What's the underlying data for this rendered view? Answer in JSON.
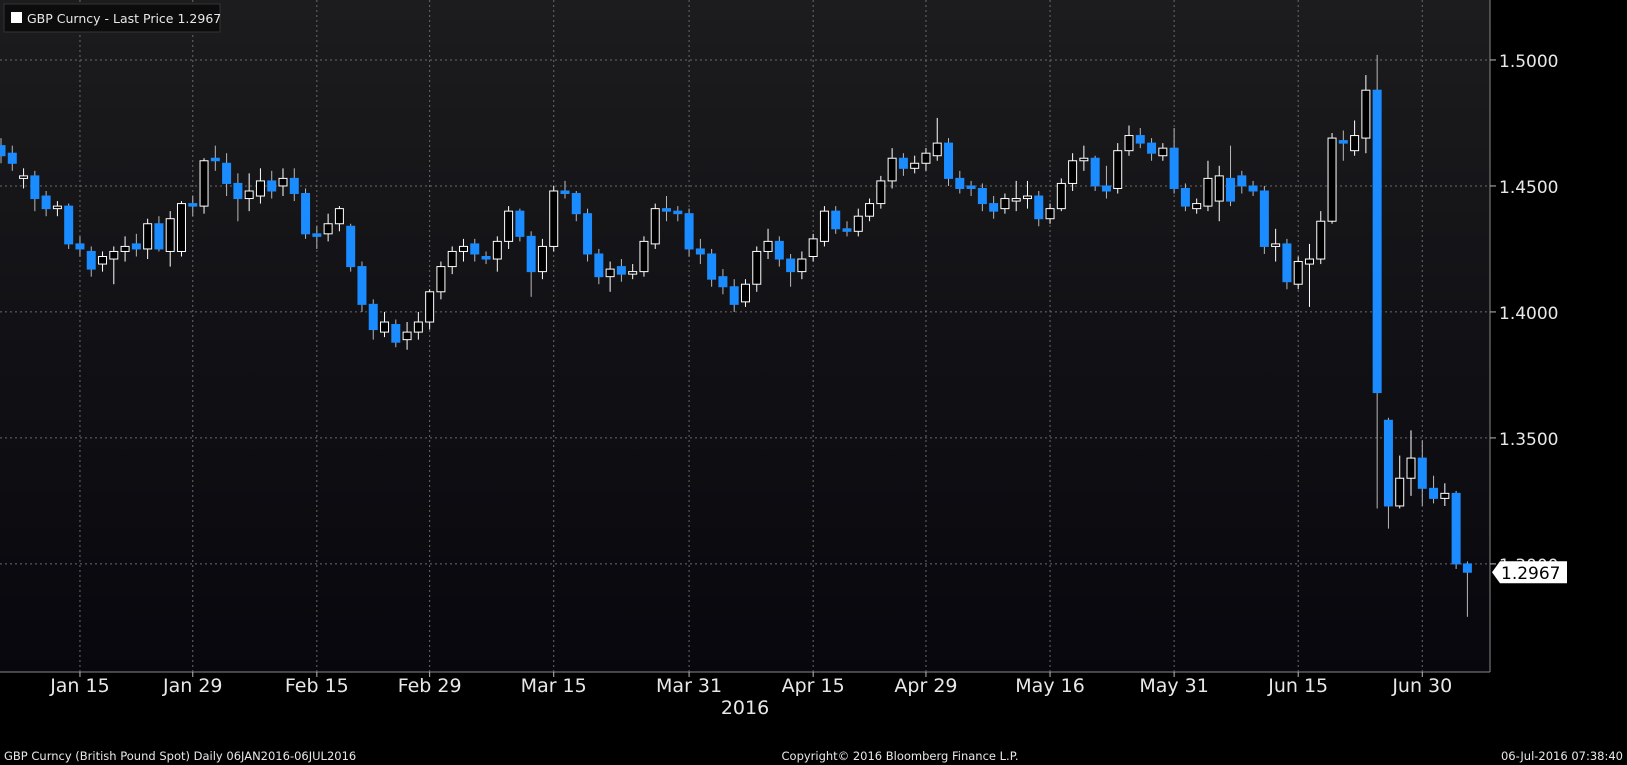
{
  "chart_data": {
    "type": "candlestick",
    "series_name": "GBP Curncy - Last Price",
    "x_label": "2016",
    "footer_left": "GBP Curncy (British Pound Spot)  Daily 06JAN2016-06JUL2016",
    "copyright": "Copyright© 2016 Bloomberg Finance L.P.",
    "timestamp": "06-Jul-2016 07:38:40",
    "up_color": "#ffffff",
    "down_color": "#1a8cff",
    "grid": true,
    "ylim": [
      1.2571,
      1.5238
    ],
    "yticks": [
      {
        "value": 1.3,
        "label": "1.3000"
      },
      {
        "value": 1.35,
        "label": "1.3500"
      },
      {
        "value": 1.4,
        "label": "1.4000"
      },
      {
        "value": 1.45,
        "label": "1.4500"
      },
      {
        "value": 1.5,
        "label": "1.5000"
      }
    ],
    "categories": [
      null,
      null,
      null,
      null,
      null,
      null,
      null,
      "Jan 15",
      null,
      null,
      null,
      null,
      null,
      null,
      null,
      null,
      null,
      "Jan 29",
      null,
      null,
      null,
      null,
      null,
      null,
      null,
      null,
      null,
      null,
      "Feb 15",
      null,
      null,
      null,
      null,
      null,
      null,
      null,
      null,
      null,
      "Feb 29",
      null,
      null,
      null,
      null,
      null,
      null,
      null,
      null,
      null,
      null,
      "Mar 15",
      null,
      null,
      null,
      null,
      null,
      null,
      null,
      null,
      null,
      null,
      null,
      "Mar 31",
      null,
      null,
      null,
      null,
      null,
      null,
      null,
      null,
      null,
      null,
      "Apr 15",
      null,
      null,
      null,
      null,
      null,
      null,
      null,
      null,
      null,
      "Apr 29",
      null,
      null,
      null,
      null,
      null,
      null,
      null,
      null,
      null,
      null,
      "May 16",
      null,
      null,
      null,
      null,
      null,
      null,
      null,
      null,
      null,
      null,
      "May 31",
      null,
      null,
      null,
      null,
      null,
      null,
      null,
      null,
      null,
      null,
      "Jun 15",
      null,
      null,
      null,
      null,
      null,
      null,
      null,
      null,
      null,
      null,
      "Jun 30",
      null,
      null,
      null,
      null
    ],
    "open": [
      1.466,
      1.463,
      1.453,
      1.454,
      1.446,
      1.441,
      1.442,
      1.427,
      1.424,
      1.419,
      1.421,
      1.424,
      1.427,
      1.425,
      1.435,
      1.424,
      1.424,
      1.443,
      1.442,
      1.461,
      1.459,
      1.451,
      1.445,
      1.446,
      1.452,
      1.45,
      1.453,
      1.447,
      1.431,
      1.431,
      1.435,
      1.434,
      1.418,
      1.403,
      1.392,
      1.395,
      1.389,
      1.392,
      1.396,
      1.408,
      1.418,
      1.424,
      1.427,
      1.422,
      1.421,
      1.428,
      1.44,
      1.43,
      1.416,
      1.426,
      1.448,
      1.447,
      1.439,
      1.423,
      1.414,
      1.418,
      1.415,
      1.416,
      1.427,
      1.441,
      1.44,
      1.439,
      1.425,
      1.423,
      1.414,
      1.41,
      1.404,
      1.411,
      1.424,
      1.428,
      1.421,
      1.416,
      1.422,
      1.428,
      1.44,
      1.433,
      1.432,
      1.438,
      1.443,
      1.452,
      1.461,
      1.457,
      1.459,
      1.462,
      1.467,
      1.453,
      1.45,
      1.449,
      1.443,
      1.441,
      1.444,
      1.445,
      1.446,
      1.437,
      1.441,
      1.451,
      1.46,
      1.461,
      1.45,
      1.449,
      1.464,
      1.47,
      1.467,
      1.462,
      1.465,
      1.449,
      1.441,
      1.442,
      1.444,
      1.453,
      1.454,
      1.45,
      1.448,
      1.426,
      1.427,
      1.411,
      1.419,
      1.421,
      1.436,
      1.468,
      1.464,
      1.469,
      1.488,
      1.357,
      1.323,
      1.334,
      1.342,
      1.33,
      1.326,
      1.328,
      1.3
    ],
    "high": [
      1.469,
      1.466,
      1.457,
      1.456,
      1.448,
      1.444,
      1.443,
      1.43,
      1.426,
      1.424,
      1.426,
      1.43,
      1.431,
      1.437,
      1.438,
      1.44,
      1.444,
      1.446,
      1.461,
      1.466,
      1.463,
      1.455,
      1.455,
      1.457,
      1.456,
      1.457,
      1.457,
      1.449,
      1.434,
      1.439,
      1.442,
      1.435,
      1.42,
      1.405,
      1.4,
      1.397,
      1.396,
      1.4,
      1.409,
      1.42,
      1.426,
      1.429,
      1.429,
      1.424,
      1.43,
      1.442,
      1.441,
      1.432,
      1.429,
      1.45,
      1.452,
      1.448,
      1.441,
      1.425,
      1.42,
      1.421,
      1.419,
      1.43,
      1.443,
      1.446,
      1.442,
      1.441,
      1.429,
      1.425,
      1.417,
      1.413,
      1.413,
      1.426,
      1.433,
      1.43,
      1.423,
      1.424,
      1.431,
      1.442,
      1.442,
      1.436,
      1.441,
      1.445,
      1.454,
      1.465,
      1.463,
      1.462,
      1.465,
      1.477,
      1.469,
      1.456,
      1.452,
      1.451,
      1.446,
      1.447,
      1.452,
      1.452,
      1.448,
      1.443,
      1.453,
      1.463,
      1.466,
      1.462,
      1.458,
      1.467,
      1.474,
      1.473,
      1.469,
      1.467,
      1.473,
      1.451,
      1.445,
      1.46,
      1.458,
      1.466,
      1.456,
      1.452,
      1.45,
      1.433,
      1.429,
      1.422,
      1.427,
      1.44,
      1.471,
      1.472,
      1.476,
      1.494,
      1.502,
      1.358,
      1.343,
      1.353,
      1.349,
      1.335,
      1.332,
      1.329,
      1.301
    ],
    "low": [
      1.459,
      1.456,
      1.449,
      1.44,
      1.438,
      1.438,
      1.425,
      1.422,
      1.414,
      1.416,
      1.411,
      1.42,
      1.422,
      1.421,
      1.424,
      1.418,
      1.422,
      1.438,
      1.439,
      1.456,
      1.446,
      1.436,
      1.44,
      1.443,
      1.445,
      1.446,
      1.444,
      1.429,
      1.425,
      1.428,
      1.432,
      1.416,
      1.4,
      1.389,
      1.39,
      1.386,
      1.385,
      1.389,
      1.393,
      1.405,
      1.415,
      1.42,
      1.42,
      1.419,
      1.416,
      1.425,
      1.428,
      1.406,
      1.413,
      1.424,
      1.445,
      1.436,
      1.42,
      1.411,
      1.408,
      1.412,
      1.413,
      1.414,
      1.425,
      1.436,
      1.436,
      1.422,
      1.419,
      1.41,
      1.407,
      1.4,
      1.402,
      1.408,
      1.421,
      1.418,
      1.41,
      1.413,
      1.42,
      1.426,
      1.431,
      1.43,
      1.43,
      1.436,
      1.441,
      1.449,
      1.454,
      1.455,
      1.456,
      1.46,
      1.45,
      1.447,
      1.446,
      1.44,
      1.437,
      1.439,
      1.44,
      1.441,
      1.434,
      1.435,
      1.44,
      1.448,
      1.456,
      1.448,
      1.445,
      1.447,
      1.462,
      1.465,
      1.46,
      1.46,
      1.447,
      1.44,
      1.439,
      1.44,
      1.436,
      1.442,
      1.447,
      1.446,
      1.423,
      1.42,
      1.409,
      1.409,
      1.402,
      1.419,
      1.435,
      1.46,
      1.462,
      1.463,
      1.322,
      1.314,
      1.322,
      1.327,
      1.323,
      1.324,
      1.323,
      1.298,
      1.279
    ],
    "close": [
      1.462,
      1.459,
      1.454,
      1.445,
      1.441,
      1.442,
      1.427,
      1.425,
      1.417,
      1.422,
      1.424,
      1.426,
      1.425,
      1.435,
      1.425,
      1.437,
      1.443,
      1.442,
      1.46,
      1.46,
      1.451,
      1.445,
      1.448,
      1.452,
      1.448,
      1.453,
      1.447,
      1.431,
      1.43,
      1.435,
      1.441,
      1.418,
      1.403,
      1.393,
      1.396,
      1.388,
      1.392,
      1.396,
      1.408,
      1.418,
      1.424,
      1.426,
      1.423,
      1.421,
      1.428,
      1.44,
      1.43,
      1.416,
      1.426,
      1.448,
      1.447,
      1.439,
      1.423,
      1.414,
      1.417,
      1.415,
      1.416,
      1.428,
      1.441,
      1.44,
      1.439,
      1.425,
      1.423,
      1.413,
      1.41,
      1.403,
      1.411,
      1.424,
      1.428,
      1.421,
      1.416,
      1.421,
      1.429,
      1.44,
      1.433,
      1.432,
      1.438,
      1.443,
      1.452,
      1.461,
      1.457,
      1.459,
      1.463,
      1.467,
      1.453,
      1.449,
      1.449,
      1.443,
      1.44,
      1.445,
      1.445,
      1.446,
      1.437,
      1.441,
      1.451,
      1.46,
      1.461,
      1.45,
      1.448,
      1.464,
      1.47,
      1.467,
      1.463,
      1.465,
      1.449,
      1.442,
      1.443,
      1.453,
      1.454,
      1.444,
      1.45,
      1.448,
      1.426,
      1.427,
      1.412,
      1.42,
      1.421,
      1.436,
      1.469,
      1.467,
      1.47,
      1.488,
      1.368,
      1.323,
      1.334,
      1.342,
      1.33,
      1.326,
      1.328,
      1.3,
      1.2967
    ]
  }
}
